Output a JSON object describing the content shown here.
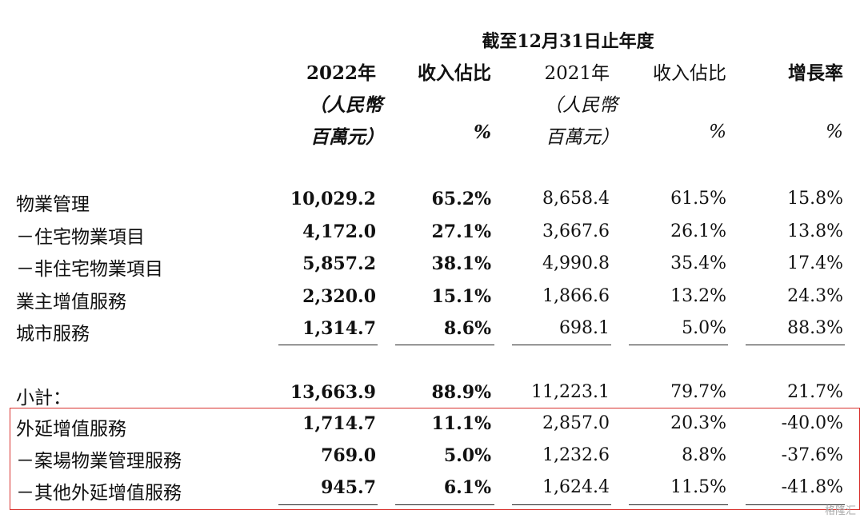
{
  "header": {
    "period": "截至12月31日止年度",
    "columns": [
      {
        "line1": "2022年",
        "line2": "（人民幣",
        "line3": "百萬元）"
      },
      {
        "line1": "收入佔比",
        "line2": "",
        "line3": "%"
      },
      {
        "line1": "2021年",
        "line2": "（人民幣",
        "line3": "百萬元）"
      },
      {
        "line1": "收入佔比",
        "line2": "",
        "line3": "%"
      },
      {
        "line1": "增長率",
        "line2": "",
        "line3": "%"
      }
    ]
  },
  "rows": [
    {
      "label": "物業管理",
      "v2022": "10,029.2",
      "pct2022": "65.2%",
      "v2021": "8,658.4",
      "pct2021": "61.5%",
      "growth": "15.8%"
    },
    {
      "label": "－住宅物業項目",
      "v2022": "4,172.0",
      "pct2022": "27.1%",
      "v2021": "3,667.6",
      "pct2021": "26.1%",
      "growth": "13.8%"
    },
    {
      "label": "－非住宅物業項目",
      "v2022": "5,857.2",
      "pct2022": "38.1%",
      "v2021": "4,990.8",
      "pct2021": "35.4%",
      "growth": "17.4%"
    },
    {
      "label": "業主增值服務",
      "v2022": "2,320.0",
      "pct2022": "15.1%",
      "v2021": "1,866.6",
      "pct2021": "13.2%",
      "growth": "24.3%"
    },
    {
      "label": "城市服務",
      "v2022": "1,314.7",
      "pct2022": "8.6%",
      "v2021": "698.1",
      "pct2021": "5.0%",
      "growth": "88.3%"
    },
    {
      "label": "小計：",
      "v2022": "13,663.9",
      "pct2022": "88.9%",
      "v2021": "11,223.1",
      "pct2021": "79.7%",
      "growth": "21.7%"
    },
    {
      "label": "外延增值服務",
      "v2022": "1,714.7",
      "pct2022": "11.1%",
      "v2021": "2,857.0",
      "pct2021": "20.3%",
      "growth": "-40.0%"
    },
    {
      "label": "－案場物業管理服務",
      "v2022": "769.0",
      "pct2022": "5.0%",
      "v2021": "1,232.6",
      "pct2021": "8.8%",
      "growth": "-37.6%"
    },
    {
      "label": "－其他外延增值服務",
      "v2022": "945.7",
      "pct2022": "6.1%",
      "v2021": "1,624.4",
      "pct2021": "11.5%",
      "growth": "-41.8%"
    }
  ],
  "watermark": "格隆汇",
  "colors": {
    "highlight_border": "#d9322e"
  }
}
